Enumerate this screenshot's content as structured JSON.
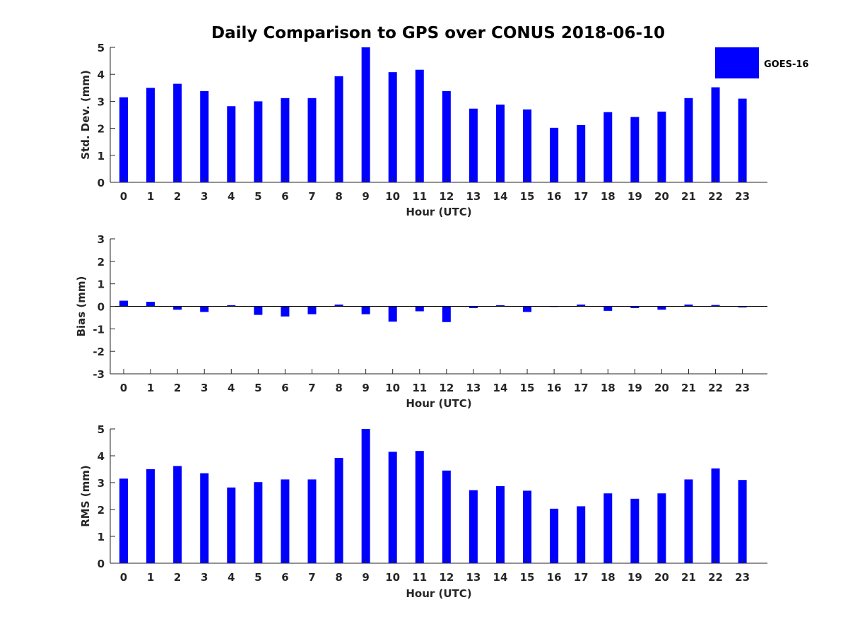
{
  "title": "Daily Comparison to GPS over CONUS 2018-06-10",
  "legend": {
    "label": "GOES-16",
    "color": "#0000ff"
  },
  "chart_data": [
    {
      "type": "bar",
      "series_name": "GOES-16",
      "categories": [
        "0",
        "1",
        "2",
        "3",
        "4",
        "5",
        "6",
        "7",
        "8",
        "9",
        "10",
        "11",
        "12",
        "13",
        "14",
        "15",
        "16",
        "17",
        "18",
        "19",
        "20",
        "21",
        "22",
        "23"
      ],
      "values": [
        3.15,
        3.5,
        3.65,
        3.38,
        2.82,
        3.0,
        3.12,
        3.12,
        3.93,
        5.0,
        4.08,
        4.17,
        3.38,
        2.73,
        2.88,
        2.7,
        2.02,
        2.12,
        2.6,
        2.42,
        2.62,
        3.12,
        3.52,
        3.1
      ],
      "xlabel": "Hour (UTC)",
      "ylabel": "Std. Dev. (mm)",
      "ylim": [
        0,
        5
      ],
      "yticks": [
        "0",
        "1",
        "2",
        "3",
        "4",
        "5"
      ]
    },
    {
      "type": "bar",
      "series_name": "GOES-16",
      "categories": [
        "0",
        "1",
        "2",
        "3",
        "4",
        "5",
        "6",
        "7",
        "8",
        "9",
        "10",
        "11",
        "12",
        "13",
        "14",
        "15",
        "16",
        "17",
        "18",
        "19",
        "20",
        "21",
        "22",
        "23"
      ],
      "values": [
        0.25,
        0.2,
        -0.15,
        -0.25,
        0.05,
        -0.38,
        -0.45,
        -0.35,
        0.08,
        -0.35,
        -0.68,
        -0.22,
        -0.7,
        -0.08,
        0.05,
        -0.25,
        -0.02,
        0.08,
        -0.2,
        -0.08,
        -0.15,
        0.08,
        0.06,
        -0.05
      ],
      "xlabel": "Hour (UTC)",
      "ylabel": "Bias (mm)",
      "ylim": [
        -3,
        3
      ],
      "yticks": [
        "-3",
        "-2",
        "-1",
        "0",
        "1",
        "2",
        "3"
      ]
    },
    {
      "type": "bar",
      "series_name": "GOES-16",
      "categories": [
        "0",
        "1",
        "2",
        "3",
        "4",
        "5",
        "6",
        "7",
        "8",
        "9",
        "10",
        "11",
        "12",
        "13",
        "14",
        "15",
        "16",
        "17",
        "18",
        "19",
        "20",
        "21",
        "22",
        "23"
      ],
      "values": [
        3.15,
        3.5,
        3.62,
        3.35,
        2.82,
        3.02,
        3.12,
        3.12,
        3.92,
        5.0,
        4.15,
        4.18,
        3.45,
        2.72,
        2.87,
        2.7,
        2.03,
        2.12,
        2.6,
        2.4,
        2.6,
        3.12,
        3.53,
        3.1
      ],
      "xlabel": "Hour (UTC)",
      "ylabel": "RMS (mm)",
      "ylim": [
        0,
        5
      ],
      "yticks": [
        "0",
        "1",
        "2",
        "3",
        "4",
        "5"
      ]
    }
  ]
}
